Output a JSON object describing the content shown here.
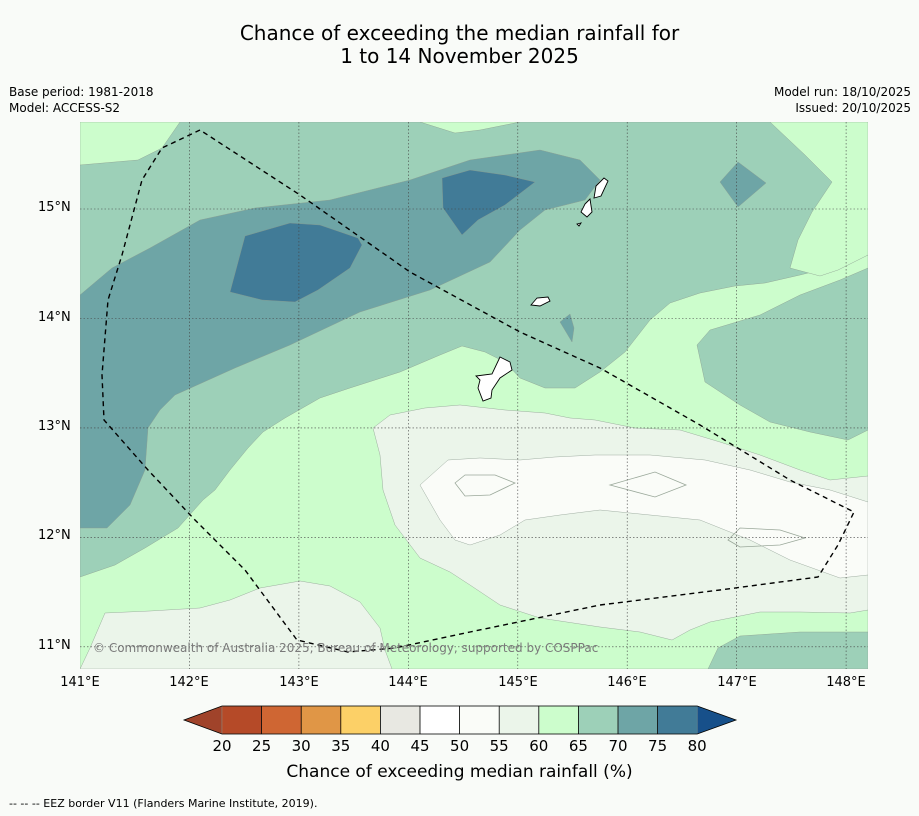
{
  "title": {
    "line1": "Chance of exceeding the median rainfall for",
    "line2": "1 to 14 November 2025"
  },
  "meta": {
    "base_period": "Base period: 1981-2018",
    "model": "Model: ACCESS-S2",
    "model_run": "Model run: 18/10/2025",
    "issued": "Issued: 20/10/2025"
  },
  "map": {
    "lon_labels": [
      "141°E",
      "142°E",
      "143°E",
      "144°E",
      "145°E",
      "146°E",
      "147°E",
      "148°E"
    ],
    "lat_labels": [
      "15°N",
      "14°N",
      "13°N",
      "12°N",
      "11°N"
    ],
    "extent": {
      "lon_min": 141,
      "lon_max": 148.2,
      "lat_min": 10.8,
      "lat_max": 15.8
    },
    "copyright": "© Commonwealth of Australia 2025, Bureau of Meteorology, supported by COSPPac",
    "colors": {
      "c20": "#b54a28",
      "c25": "#cf6633",
      "c30": "#e09646",
      "c35": "#fcd067",
      "c40": "#e8e8e2",
      "c45": "#ffffff",
      "c50": "#fafcf8",
      "c55": "#ebf5ea",
      "c60": "#ccfdcc",
      "c65": "#9dd0b8",
      "c70": "#6ea5a6",
      "c75": "#417b97",
      "c80": "#17508a",
      "below": "#a0432a"
    }
  },
  "colorbar": {
    "ticks": [
      "20",
      "25",
      "30",
      "35",
      "40",
      "45",
      "50",
      "55",
      "60",
      "65",
      "70",
      "75",
      "80"
    ],
    "label": "Chance of exceeding median rainfall (%)"
  },
  "footnote": "--  --  -- EEZ border V11 (Flanders Marine Institute, 2019)."
}
